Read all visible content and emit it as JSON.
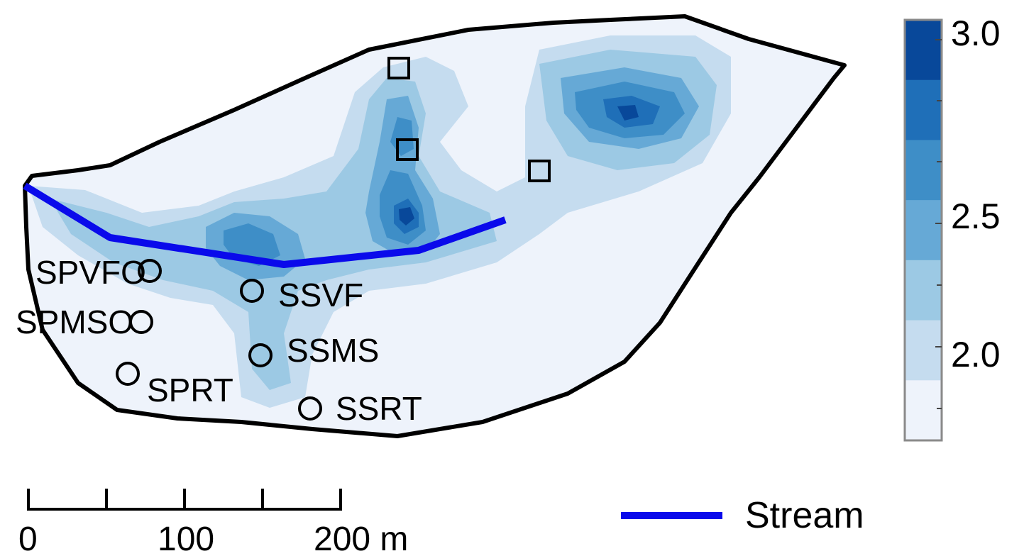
{
  "sites": [
    {
      "label": "SPVFO"
    },
    {
      "label": "SSVF"
    },
    {
      "label": "SPMSO"
    },
    {
      "label": "SSMS"
    },
    {
      "label": "SPRT"
    },
    {
      "label": "SSRT"
    }
  ],
  "colorbar": {
    "ticks": [
      "3.0",
      "2.5",
      "2.0"
    ],
    "colors": [
      "#08489a",
      "#1f6fb8",
      "#3e8ec7",
      "#66a9d6",
      "#9cc9e4",
      "#c5dcef",
      "#eef3fb"
    ]
  },
  "scalebar": {
    "labels": [
      "0",
      "100",
      "200 m"
    ]
  },
  "legend": {
    "stream_label": "Stream",
    "stream_color": "#0a0aeb"
  },
  "icons": {
    "site": "circle-marker-icon",
    "sampling": "square-marker-icon"
  }
}
